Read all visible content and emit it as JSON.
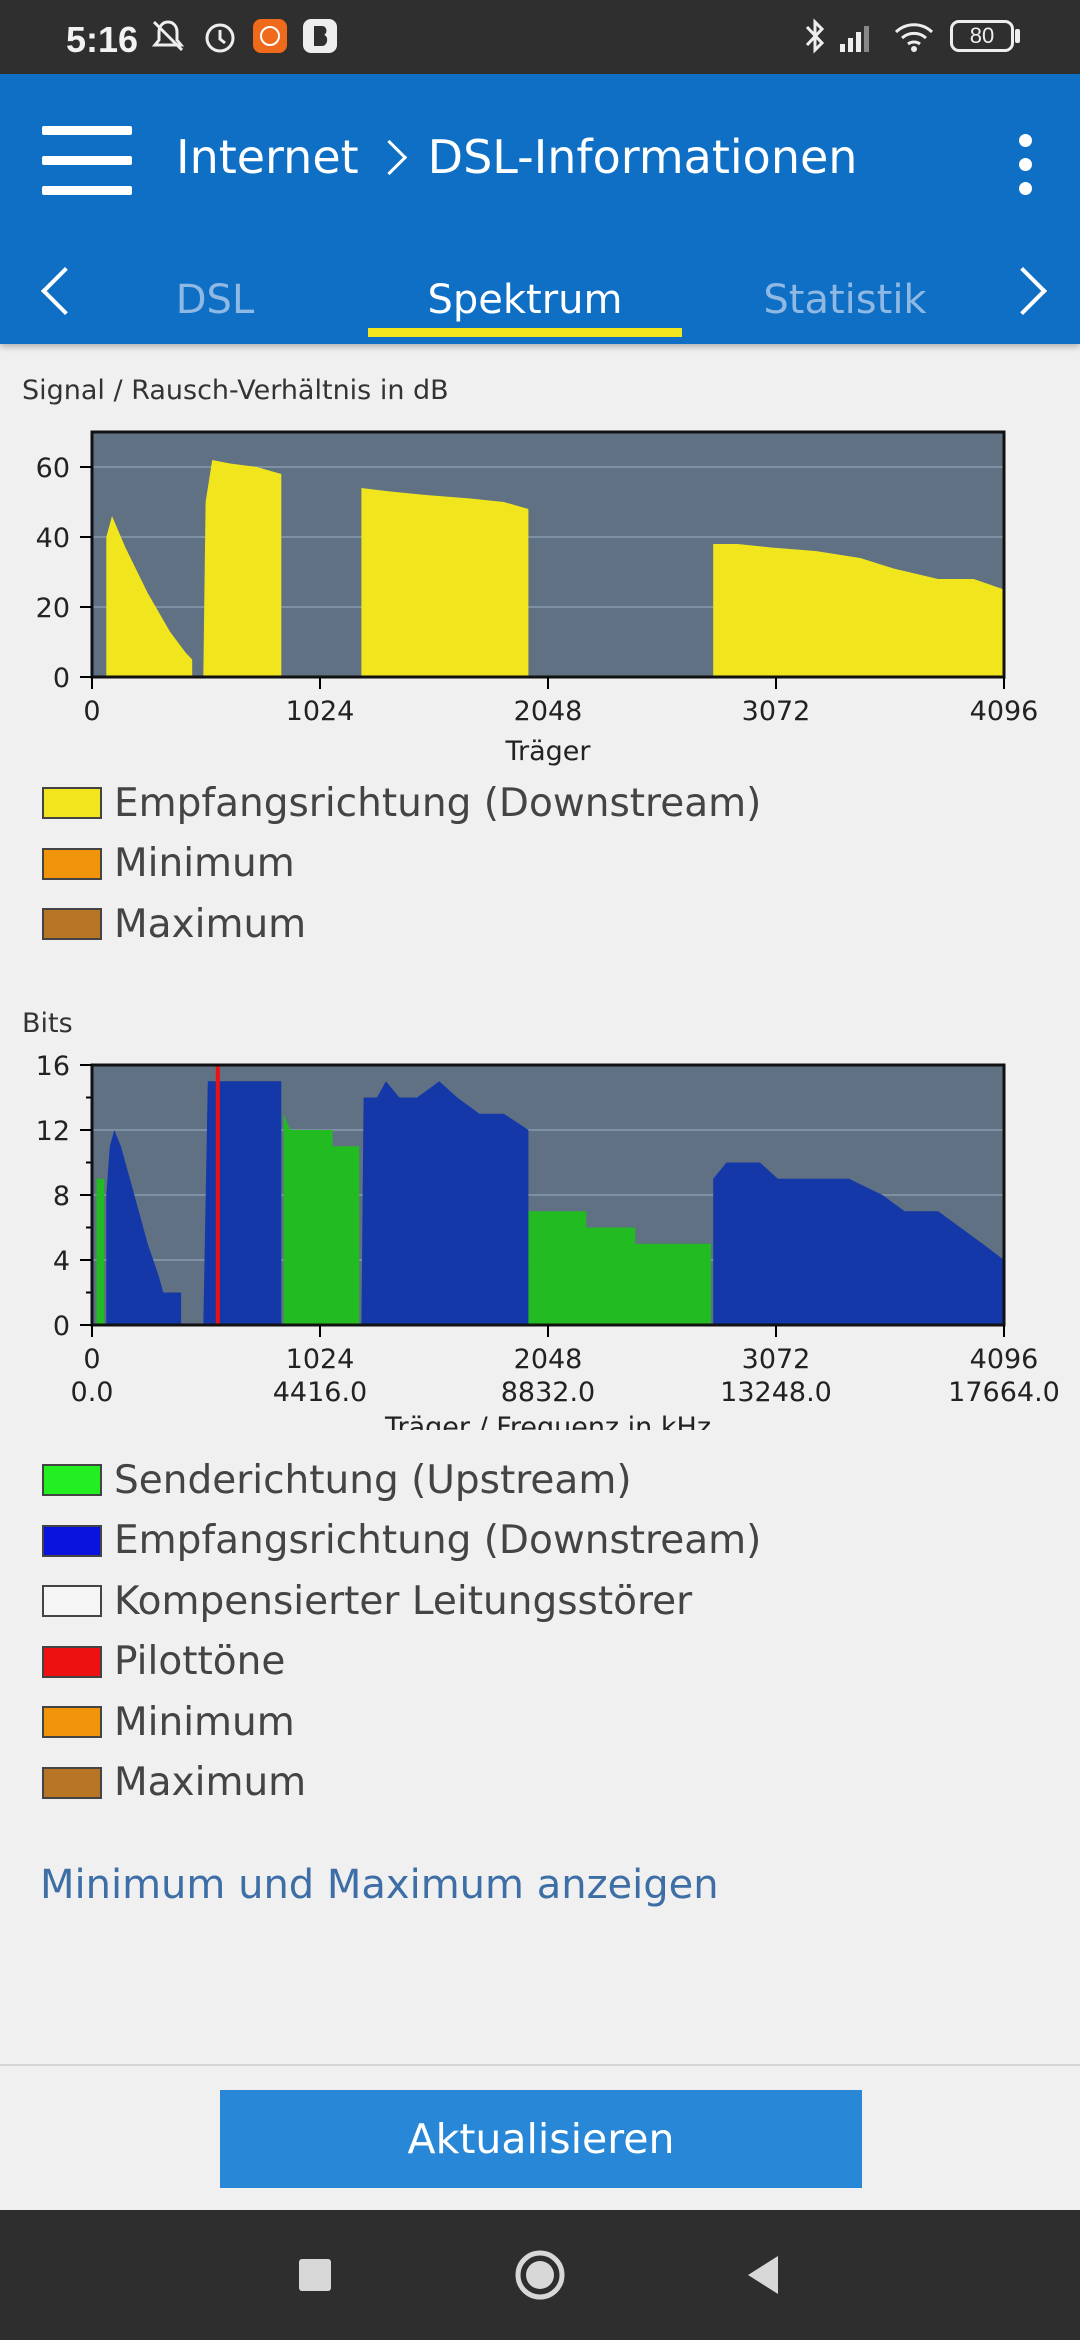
{
  "status_bar": {
    "time": "5:16",
    "battery": "80"
  },
  "header": {
    "breadcrumb_section": "Internet",
    "breadcrumb_page": "DSL-Informationen"
  },
  "tabs": {
    "items": [
      "DSL",
      "Spektrum",
      "Statistik"
    ],
    "active": "Spektrum"
  },
  "snr_chart": {
    "title": "Signal / Rausch-Verhältnis in dB",
    "xlabel": "Träger",
    "legend": [
      {
        "label": "Empfangsrichtung (Downstream)",
        "color": "#f1e51d"
      },
      {
        "label": "Minimum",
        "color": "#f0950b"
      },
      {
        "label": "Maximum",
        "color": "#b87526"
      }
    ]
  },
  "bits_chart": {
    "title": "Bits",
    "xlabel": "Träger / Frequenz in kHz",
    "legend": [
      {
        "label": "Senderichtung (Upstream)",
        "color": "#22ee22"
      },
      {
        "label": "Empfangsrichtung (Downstream)",
        "color": "#0a12dd"
      },
      {
        "label": "Kompensierter Leitungsstörer",
        "color": "#f5f5f5"
      },
      {
        "label": "Pilottöne",
        "color": "#ee1111"
      },
      {
        "label": "Minimum",
        "color": "#f0950b"
      },
      {
        "label": "Maximum",
        "color": "#b87526"
      }
    ]
  },
  "link": "Minimum und Maximum anzeigen",
  "button": "Aktualisieren",
  "chart_data": [
    {
      "type": "area",
      "title": "Signal / Rausch-Verhältnis in dB",
      "xlabel": "Träger",
      "ylabel": "",
      "xlim": [
        0,
        4096
      ],
      "ylim": [
        0,
        70
      ],
      "x_ticks": [
        "0",
        "1024",
        "2048",
        "3072",
        "4096"
      ],
      "y_ticks": [
        0,
        20,
        40,
        60
      ],
      "grid": true,
      "series": [
        {
          "name": "Empfangsrichtung (Downstream)",
          "color": "#f1e51d",
          "segments": [
            [
              [
                64,
                0
              ],
              [
                64,
                40
              ],
              [
                90,
                46
              ],
              [
                150,
                37
              ],
              [
                250,
                24
              ],
              [
                350,
                13
              ],
              [
                420,
                7
              ],
              [
                450,
                5
              ],
              [
                450,
                0
              ]
            ],
            [
              [
                500,
                0
              ],
              [
                510,
                50
              ],
              [
                540,
                62
              ],
              [
                620,
                61
              ],
              [
                740,
                60
              ],
              [
                850,
                58
              ],
              [
                850,
                0
              ]
            ],
            [
              [
                1210,
                0
              ],
              [
                1210,
                54
              ],
              [
                1340,
                53
              ],
              [
                1500,
                52
              ],
              [
                1700,
                51
              ],
              [
                1850,
                50
              ],
              [
                1960,
                48
              ],
              [
                1960,
                0
              ]
            ],
            [
              [
                2790,
                0
              ],
              [
                2790,
                38
              ],
              [
                2900,
                38
              ],
              [
                3050,
                37
              ],
              [
                3250,
                36
              ],
              [
                3450,
                34
              ],
              [
                3600,
                31
              ],
              [
                3800,
                28
              ],
              [
                3960,
                28
              ],
              [
                4096,
                25
              ],
              [
                4096,
                0
              ]
            ]
          ]
        }
      ]
    },
    {
      "type": "area",
      "title": "Bits",
      "xlabel": "Träger / Frequenz in kHz",
      "ylabel": "",
      "xlim": [
        0,
        4096
      ],
      "ylim": [
        0,
        16
      ],
      "x_ticks": [
        "0",
        "1024",
        "2048",
        "3072",
        "4096"
      ],
      "x_ticks_secondary": [
        "0.0",
        "4416.0",
        "8832.0",
        "13248.0",
        "17664.0"
      ],
      "y_ticks": [
        0,
        4,
        8,
        12,
        16
      ],
      "grid": true,
      "series": [
        {
          "name": "Senderichtung (Upstream)",
          "color": "#22bb22",
          "segments": [
            [
              [
                20,
                0
              ],
              [
                20,
                9
              ],
              [
                55,
                9
              ],
              [
                55,
                0
              ]
            ],
            [
              [
                860,
                0
              ],
              [
                860,
                13
              ],
              [
                890,
                12
              ],
              [
                1080,
                12
              ],
              [
                1080,
                11
              ],
              [
                1200,
                11
              ],
              [
                1200,
                0
              ]
            ],
            [
              [
                1960,
                0
              ],
              [
                1960,
                7
              ],
              [
                2220,
                7
              ],
              [
                2220,
                6
              ],
              [
                2440,
                6
              ],
              [
                2440,
                5
              ],
              [
                2780,
                5
              ],
              [
                2780,
                0
              ]
            ]
          ]
        },
        {
          "name": "Empfangsrichtung (Downstream)",
          "color": "#1438a8",
          "segments": [
            [
              [
                64,
                0
              ],
              [
                64,
                8
              ],
              [
                80,
                11
              ],
              [
                100,
                12
              ],
              [
                130,
                11
              ],
              [
                170,
                9
              ],
              [
                210,
                7
              ],
              [
                250,
                5
              ],
              [
                300,
                3
              ],
              [
                320,
                2
              ],
              [
                400,
                2
              ],
              [
                400,
                0
              ]
            ],
            [
              [
                500,
                0
              ],
              [
                520,
                15
              ],
              [
                850,
                15
              ],
              [
                850,
                0
              ]
            ],
            [
              [
                1210,
                0
              ],
              [
                1220,
                14
              ],
              [
                1280,
                14
              ],
              [
                1320,
                15
              ],
              [
                1380,
                14
              ],
              [
                1460,
                14
              ],
              [
                1560,
                15
              ],
              [
                1640,
                14
              ],
              [
                1740,
                13
              ],
              [
                1850,
                13
              ],
              [
                1960,
                12
              ],
              [
                1960,
                0
              ]
            ],
            [
              [
                2790,
                0
              ],
              [
                2790,
                9
              ],
              [
                2850,
                10
              ],
              [
                3000,
                10
              ],
              [
                3080,
                9
              ],
              [
                3250,
                9
              ],
              [
                3400,
                9
              ],
              [
                3550,
                8
              ],
              [
                3650,
                7
              ],
              [
                3800,
                7
              ],
              [
                3900,
                6
              ],
              [
                4000,
                5
              ],
              [
                4096,
                4
              ],
              [
                4096,
                0
              ]
            ]
          ]
        },
        {
          "name": "Pilottöne",
          "color": "#ee1111",
          "x": [
            565
          ],
          "values": [
            16
          ]
        }
      ]
    }
  ]
}
